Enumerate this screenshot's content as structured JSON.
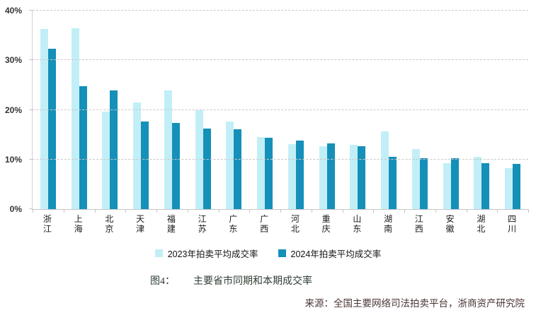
{
  "chart_data": {
    "type": "bar",
    "title": "图4：主要省市同期和本期成交率",
    "categories": [
      "浙江",
      "上海",
      "北京",
      "天津",
      "福建",
      "江苏",
      "广东",
      "广西",
      "河北",
      "重庆",
      "山东",
      "湖南",
      "江西",
      "安徽",
      "湖北",
      "四川"
    ],
    "series": [
      {
        "name": "2023年拍卖平均成交率",
        "color": "#c2eff7",
        "values": [
          36.3,
          36.4,
          19.7,
          21.5,
          23.9,
          20.0,
          17.6,
          14.5,
          13.1,
          12.7,
          12.9,
          15.6,
          12.1,
          9.2,
          10.5,
          8.3
        ]
      },
      {
        "name": "2024年拍卖平均成交率",
        "color": "#1590b9",
        "values": [
          32.3,
          24.7,
          23.9,
          17.7,
          17.4,
          16.3,
          16.1,
          14.4,
          13.8,
          13.3,
          12.7,
          10.5,
          10.2,
          10.3,
          9.2,
          9.1
        ]
      }
    ],
    "xlabel": "",
    "ylabel": "",
    "ylim": [
      0,
      40
    ],
    "yticks": [
      0,
      10,
      20,
      30,
      40
    ],
    "ytick_suffix": "%",
    "grid": "horizontal-dashed",
    "legend_position": "bottom"
  },
  "caption": {
    "prefix": "图4：",
    "title": "主要省市同期和本期成交率"
  },
  "source": {
    "text": "来源：全国主要网络司法拍卖平台，浙商资产研究院"
  }
}
